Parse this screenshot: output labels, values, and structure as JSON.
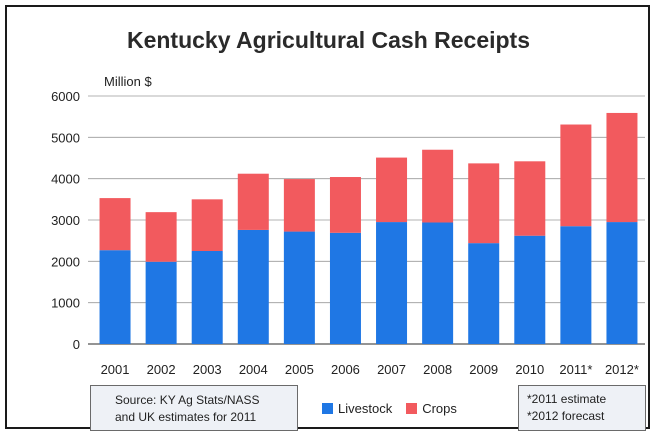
{
  "chart_data": {
    "type": "bar",
    "stacked": true,
    "title": "Kentucky Agricultural Cash Receipts",
    "ylabel": "Million $",
    "xlabel": "",
    "ylim": [
      0,
      6000
    ],
    "yticks": [
      0,
      1000,
      2000,
      3000,
      4000,
      5000,
      6000
    ],
    "grid": true,
    "legend_position": "bottom",
    "categories": [
      "2001",
      "2002",
      "2003",
      "2004",
      "2005",
      "2006",
      "2007",
      "2008",
      "2009",
      "2010",
      "2011*",
      "2012*"
    ],
    "series": [
      {
        "name": "Livestock",
        "color": "#1f77e4",
        "values": [
          2270,
          1990,
          2250,
          2760,
          2720,
          2690,
          2950,
          2940,
          2440,
          2620,
          2850,
          2950
        ]
      },
      {
        "name": "Crops",
        "color": "#f25a5e",
        "values": [
          1260,
          1200,
          1250,
          1360,
          1270,
          1350,
          1560,
          1760,
          1930,
          1800,
          2460,
          2640
        ]
      }
    ]
  },
  "source_note": {
    "line1": "Source: KY Ag Stats/NASS",
    "line2": "and UK estimates for 2011"
  },
  "footnote": {
    "line1": "*2011 estimate",
    "line2": "*2012 forecast"
  },
  "colors": {
    "livestock": "#1f77e4",
    "crops": "#f25a5e",
    "plot_background": "#ffffff",
    "gridline": "#9a9a9a"
  }
}
